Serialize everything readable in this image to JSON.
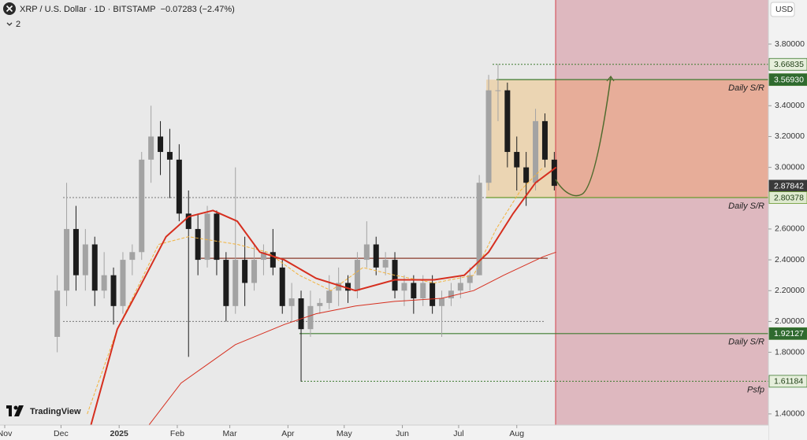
{
  "chart_data": {
    "type": "candlestick",
    "title": "XRP / U.S. Dollar · 1D · BITSTAMP",
    "subtitle": "−0.07283 (−2.47%)",
    "indicator_count": 2,
    "currency": "USD",
    "watermark": "TradingView",
    "up_color": "#a3a3a3",
    "down_color": "#1c1c1c",
    "x": [
      28,
      33,
      38,
      43,
      48,
      53,
      58,
      63,
      68,
      73,
      78,
      83,
      88,
      93,
      98,
      103,
      108,
      113,
      118,
      123,
      128,
      133,
      138,
      143,
      148,
      153,
      158,
      163,
      168,
      173,
      178,
      183,
      188,
      193,
      198,
      203,
      208,
      213,
      218,
      223,
      228,
      233,
      238,
      243,
      248,
      253,
      258,
      263,
      268,
      273,
      278,
      283,
      288,
      293
    ],
    "open": [
      1.9,
      2.2,
      2.6,
      2.3,
      2.5,
      2.2,
      2.3,
      2.1,
      2.4,
      2.45,
      3.05,
      3.2,
      3.1,
      3.05,
      2.7,
      2.6,
      2.4,
      2.7,
      2.4,
      2.1,
      2.4,
      2.25,
      2.4,
      2.45,
      2.35,
      2.1,
      2.15,
      1.95,
      2.1,
      2.12,
      2.2,
      2.25,
      2.2,
      2.4,
      2.5,
      2.35,
      2.4,
      2.2,
      2.25,
      2.15,
      2.25,
      2.1,
      2.15,
      2.2,
      2.25,
      2.3,
      2.9,
      3.5,
      3.5,
      3.1,
      3.0,
      2.9,
      3.3,
      3.05
    ],
    "high": [
      2.3,
      2.9,
      2.75,
      2.6,
      2.55,
      2.45,
      2.35,
      2.45,
      2.5,
      3.1,
      3.4,
      3.3,
      3.25,
      3.15,
      2.85,
      2.7,
      2.75,
      2.72,
      2.45,
      3.0,
      2.55,
      2.5,
      2.5,
      2.6,
      2.4,
      2.25,
      2.2,
      2.2,
      2.15,
      2.3,
      2.35,
      2.3,
      2.45,
      2.65,
      2.55,
      2.45,
      2.45,
      2.3,
      2.3,
      2.3,
      2.3,
      2.2,
      2.25,
      2.3,
      2.35,
      2.95,
      3.6,
      3.67,
      3.55,
      3.2,
      3.1,
      3.38,
      3.35,
      3.1
    ],
    "low": [
      1.8,
      2.1,
      2.2,
      2.2,
      2.1,
      2.15,
      1.98,
      2.05,
      2.3,
      2.4,
      2.9,
      2.95,
      2.8,
      2.65,
      1.77,
      2.3,
      2.35,
      2.3,
      2.0,
      2.05,
      2.1,
      2.2,
      2.3,
      2.3,
      2.05,
      2.0,
      1.61,
      1.9,
      2.05,
      2.08,
      2.1,
      2.12,
      2.15,
      2.35,
      2.3,
      2.3,
      2.15,
      2.1,
      2.05,
      2.1,
      2.05,
      1.9,
      2.1,
      2.15,
      2.2,
      2.3,
      2.85,
      3.3,
      3.0,
      2.85,
      2.75,
      2.85,
      3.0,
      2.85
    ],
    "close": [
      2.2,
      2.6,
      2.3,
      2.5,
      2.2,
      2.3,
      2.1,
      2.4,
      2.45,
      3.05,
      3.2,
      3.1,
      3.05,
      2.7,
      2.6,
      2.4,
      2.7,
      2.4,
      2.1,
      2.4,
      2.25,
      2.4,
      2.45,
      2.35,
      2.1,
      2.15,
      1.95,
      2.1,
      2.12,
      2.2,
      2.25,
      2.2,
      2.4,
      2.5,
      2.35,
      2.4,
      2.2,
      2.25,
      2.15,
      2.25,
      2.1,
      2.15,
      2.2,
      2.25,
      2.3,
      2.9,
      3.5,
      3.5,
      3.1,
      3.0,
      2.9,
      3.3,
      3.05,
      2.88
    ],
    "overlays": [
      {
        "color": "#f2b33d",
        "width": 1,
        "dash": true,
        "x": [
          44,
          60,
          82,
          98,
          124,
          140,
          157,
          174,
          191,
          208,
          229,
          250,
          262,
          275,
          287
        ],
        "values": [
          1.4,
          1.95,
          2.5,
          2.55,
          2.5,
          2.45,
          2.3,
          2.2,
          2.35,
          2.3,
          2.25,
          2.3,
          2.6,
          2.85,
          3.0
        ]
      },
      {
        "color": "#d62f1f",
        "width": 2,
        "dash": false,
        "x": [
          46,
          60,
          71,
          86,
          98,
          111,
          124,
          136,
          149,
          166,
          187,
          208,
          229,
          245,
          258,
          271,
          283,
          294
        ],
        "values": [
          1.33,
          1.95,
          2.2,
          2.55,
          2.68,
          2.72,
          2.65,
          2.45,
          2.4,
          2.28,
          2.2,
          2.27,
          2.27,
          2.3,
          2.45,
          2.7,
          2.9,
          3.0
        ]
      },
      {
        "color": "#d62f1f",
        "width": 1,
        "dash": false,
        "x": [
          77,
          94,
          123,
          149,
          166,
          187,
          208,
          233,
          250,
          266,
          287,
          294
        ],
        "values": [
          1.33,
          1.6,
          1.85,
          1.98,
          2.05,
          2.1,
          2.13,
          2.15,
          2.2,
          2.3,
          2.42,
          2.45
        ]
      }
    ],
    "levels": [
      {
        "value": 3.66835,
        "label": "3.66835",
        "color": "#3d7a2f",
        "dash": true
      },
      {
        "value": 3.5693,
        "label": "3.56930",
        "color": "#3d7a2f",
        "dash": false,
        "note": "Daily S/R"
      },
      {
        "value": 2.87842,
        "label": "2.87842",
        "color": "#333333",
        "dash": true
      },
      {
        "value": 2.80378,
        "label": "2.80378",
        "color": "#6a9a2f",
        "dash": false,
        "note": "Daily S/R"
      },
      {
        "value": 1.92127,
        "label": "1.92127",
        "color": "#3d7a2f",
        "dash": false,
        "note": "Daily S/R"
      },
      {
        "value": 1.61184,
        "label": "1.61184",
        "color": "#3d7a2f",
        "dash": true,
        "note": "Psfp"
      },
      {
        "value": 2.41,
        "color": "#8a3a2a",
        "dash": false
      },
      {
        "value": 2.0,
        "color": "#777777",
        "dash": true
      }
    ],
    "xlim": [
      -2.52,
      407.14
    ],
    "ylim": [
      1.3278,
      4.086
    ],
    "xticks": [
      {
        "value": 0,
        "label": "Nov"
      },
      {
        "value": 30,
        "label": "Dec"
      },
      {
        "value": 61,
        "label": "2025"
      },
      {
        "value": 92,
        "label": "Feb"
      },
      {
        "value": 120,
        "label": "Mar"
      },
      {
        "value": 151,
        "label": "Apr"
      },
      {
        "value": 181,
        "label": "May"
      },
      {
        "value": 212,
        "label": "Jun"
      },
      {
        "value": 242,
        "label": "Jul"
      },
      {
        "value": 273,
        "label": "Aug"
      }
    ],
    "yticks": [
      {
        "value": 3.8,
        "label": "3.80000"
      },
      {
        "value": 3.4,
        "label": "3.40000"
      },
      {
        "value": 3.2,
        "label": "3.20000"
      },
      {
        "value": 3.0,
        "label": "3.00000"
      },
      {
        "value": 2.6,
        "label": "2.60000"
      },
      {
        "value": 2.4,
        "label": "2.40000"
      },
      {
        "value": 2.2,
        "label": "2.20000"
      },
      {
        "value": 2.0,
        "label": "2.00000"
      },
      {
        "value": 1.8,
        "label": "1.80000"
      },
      {
        "value": 1.4,
        "label": "1.40000"
      }
    ]
  }
}
